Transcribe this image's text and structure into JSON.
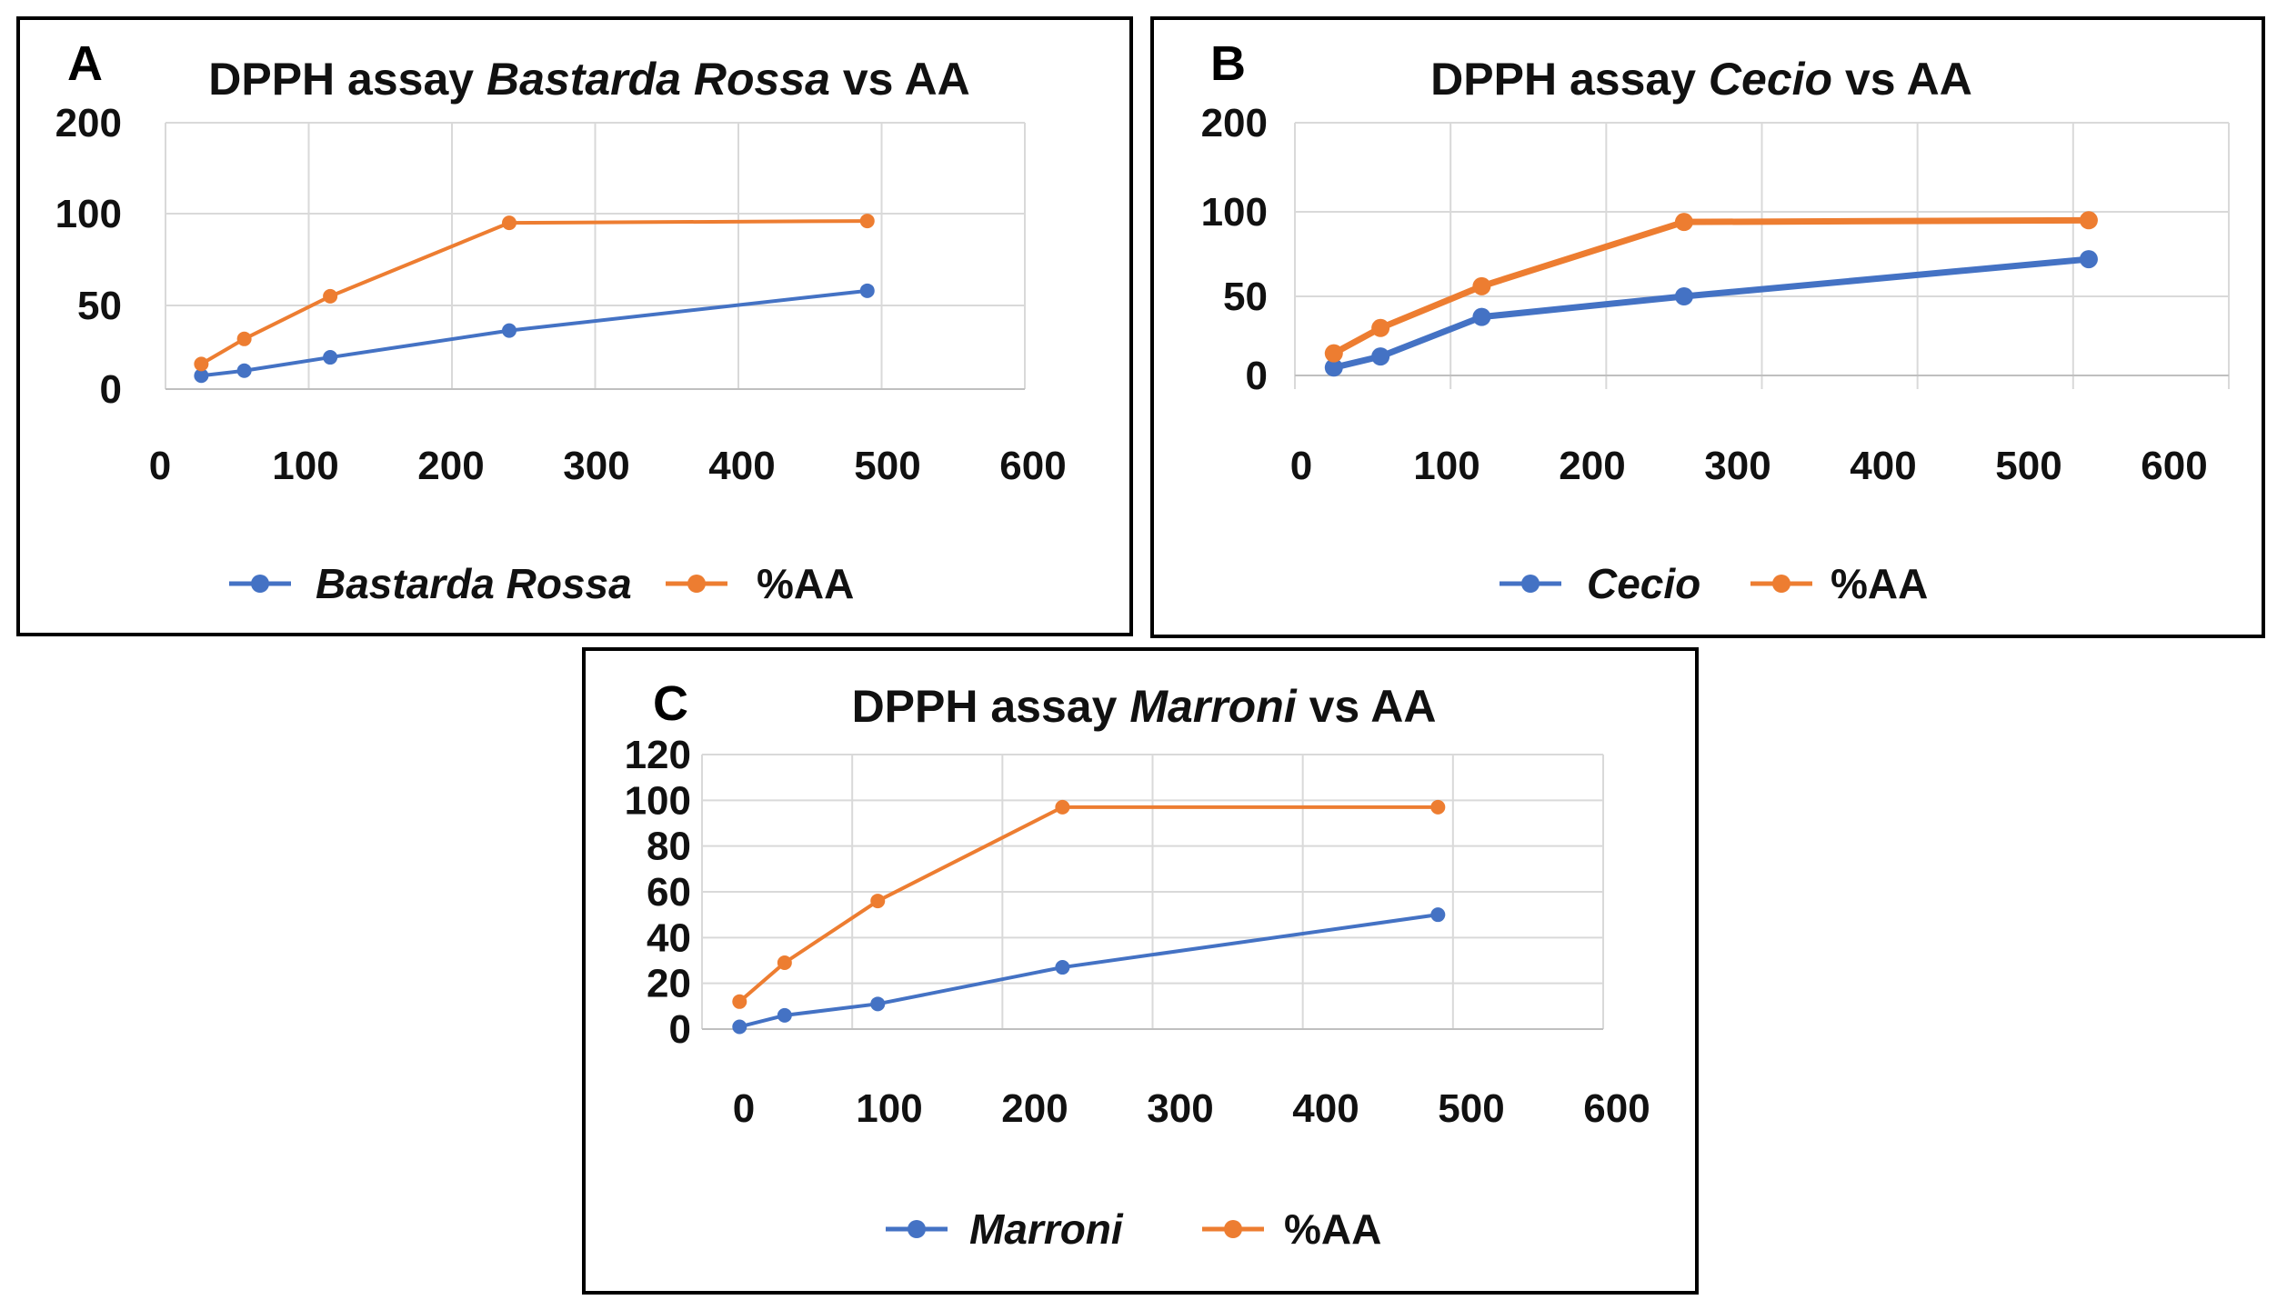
{
  "figure": {
    "panels": [
      "A",
      "B",
      "C"
    ]
  },
  "chart_data": [
    {
      "type": "line",
      "letter": "A",
      "title": {
        "prefix": "DPPH assay ",
        "species": "Bastarda Rossa",
        "suffix": " vs AA"
      },
      "xlabel": "",
      "ylabel": "",
      "x": [
        25,
        55,
        115,
        240,
        490
      ],
      "series": [
        {
          "name": "Bastarda Rossa",
          "italic": true,
          "color": "#4472C4",
          "values": [
            8,
            11,
            19,
            35,
            58
          ]
        },
        {
          "name": "%AA",
          "italic": false,
          "color": "#ED7D31",
          "values": [
            15,
            30,
            55,
            95,
            96
          ]
        }
      ],
      "y_ticks": [
        0,
        50,
        100,
        200
      ],
      "y_tick_labels": [
        "0",
        "50",
        "100",
        "200"
      ],
      "x_ticks": [
        0,
        100,
        200,
        300,
        400,
        500,
        600
      ],
      "x_tick_labels": [
        "0",
        "100",
        "200",
        "300",
        "400",
        "500",
        "600"
      ],
      "xlim": [
        0,
        600
      ],
      "ylim": [
        0,
        200
      ],
      "grid": true,
      "legend": "bottom"
    },
    {
      "type": "line",
      "letter": "B",
      "title": {
        "prefix": "DPPH assay ",
        "species": "Cecio",
        "suffix": " vs AA"
      },
      "xlabel": "",
      "ylabel": "",
      "x": [
        25,
        55,
        120,
        250,
        510
      ],
      "series": [
        {
          "name": "Cecio",
          "italic": true,
          "color": "#4472C4",
          "values": [
            5,
            12,
            37,
            50,
            72
          ]
        },
        {
          "name": "%AA",
          "italic": false,
          "color": "#ED7D31",
          "values": [
            14,
            30,
            56,
            94,
            95
          ]
        }
      ],
      "y_ticks": [
        0,
        50,
        100,
        200
      ],
      "y_tick_labels": [
        "0",
        "50",
        "100",
        "200"
      ],
      "x_ticks": [
        0,
        100,
        200,
        300,
        400,
        500,
        600
      ],
      "x_tick_labels": [
        "0",
        "100",
        "200",
        "300",
        "400",
        "500",
        "600"
      ],
      "xlim": [
        0,
        600
      ],
      "ylim": [
        0,
        200
      ],
      "grid": true,
      "legend": "bottom"
    },
    {
      "type": "line",
      "letter": "C",
      "title": {
        "prefix": "DPPH assay ",
        "species": "Marroni",
        "suffix": " vs AA"
      },
      "xlabel": "",
      "ylabel": "",
      "x": [
        25,
        55,
        117,
        240,
        490
      ],
      "series": [
        {
          "name": "Marroni",
          "italic": true,
          "color": "#4472C4",
          "values": [
            1,
            6,
            11,
            27,
            50
          ]
        },
        {
          "name": "%AA",
          "italic": false,
          "color": "#ED7D31",
          "values": [
            12,
            29,
            56,
            97,
            97
          ]
        }
      ],
      "y_ticks": [
        0,
        20,
        40,
        60,
        80,
        100,
        120
      ],
      "y_tick_labels": [
        "0",
        "20",
        "40",
        "60",
        "80",
        "100",
        "120"
      ],
      "x_ticks": [
        0,
        100,
        200,
        300,
        400,
        500,
        600
      ],
      "x_tick_labels": [
        "0",
        "100",
        "200",
        "300",
        "400",
        "500",
        "600"
      ],
      "xlim": [
        0,
        600
      ],
      "ylim": [
        0,
        120
      ],
      "grid": true,
      "legend": "bottom"
    }
  ]
}
